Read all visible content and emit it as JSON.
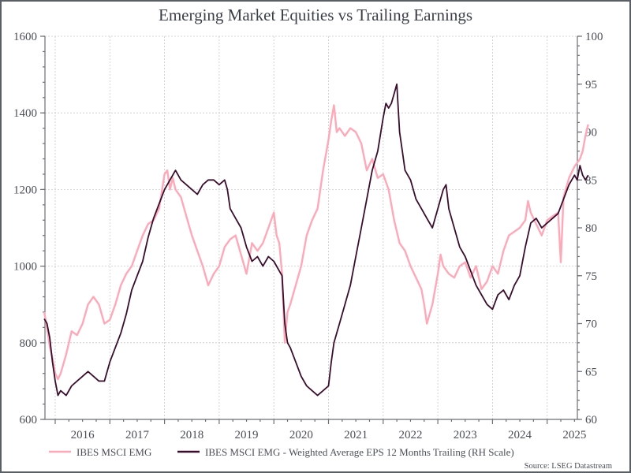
{
  "chart_data": {
    "type": "line",
    "title": "Emerging Market Equities vs Trailing Earnings",
    "xlabel": "",
    "ylabel_left": "",
    "ylabel_right": "",
    "x_tick_labels": [
      "2016",
      "2017",
      "2018",
      "2019",
      "2020",
      "2021",
      "2022",
      "2023",
      "2024",
      "2025"
    ],
    "xlim": [
      2015.8,
      2025.75
    ],
    "ylim_left": [
      600,
      1600
    ],
    "yticks_left": [
      600,
      800,
      1000,
      1200,
      1400,
      1600
    ],
    "ylim_right": [
      60,
      100
    ],
    "yticks_right": [
      60,
      65,
      70,
      75,
      80,
      85,
      90,
      95,
      100
    ],
    "grid": true,
    "legend_position": "bottom",
    "source": "Source: LSEG Datastream",
    "series": [
      {
        "name": "IBES MSCI EMG",
        "axis": "left",
        "color": "#ffa8b8",
        "x": [
          2015.8,
          2015.85,
          2015.9,
          2015.95,
          2016.0,
          2016.05,
          2016.1,
          2016.2,
          2016.3,
          2016.4,
          2016.5,
          2016.6,
          2016.7,
          2016.8,
          2016.9,
          2017.0,
          2017.1,
          2017.2,
          2017.3,
          2017.4,
          2017.5,
          2017.6,
          2017.7,
          2017.8,
          2017.9,
          2018.0,
          2018.05,
          2018.1,
          2018.15,
          2018.2,
          2018.3,
          2018.4,
          2018.5,
          2018.6,
          2018.7,
          2018.8,
          2018.9,
          2019.0,
          2019.1,
          2019.2,
          2019.3,
          2019.4,
          2019.5,
          2019.6,
          2019.7,
          2019.8,
          2019.9,
          2020.0,
          2020.05,
          2020.1,
          2020.15,
          2020.2,
          2020.25,
          2020.3,
          2020.4,
          2020.5,
          2020.6,
          2020.7,
          2020.8,
          2020.9,
          2021.0,
          2021.05,
          2021.1,
          2021.15,
          2021.2,
          2021.3,
          2021.4,
          2021.5,
          2021.6,
          2021.7,
          2021.8,
          2021.9,
          2022.0,
          2022.1,
          2022.15,
          2022.2,
          2022.3,
          2022.4,
          2022.5,
          2022.6,
          2022.7,
          2022.75,
          2022.8,
          2022.9,
          2023.0,
          2023.05,
          2023.1,
          2023.2,
          2023.3,
          2023.4,
          2023.5,
          2023.6,
          2023.7,
          2023.8,
          2023.9,
          2024.0,
          2024.1,
          2024.2,
          2024.3,
          2024.4,
          2024.5,
          2024.6,
          2024.65,
          2024.7,
          2024.8,
          2024.9,
          2025.0,
          2025.1,
          2025.2,
          2025.25,
          2025.3,
          2025.4,
          2025.5,
          2025.6,
          2025.65,
          2025.7,
          2025.75
        ],
        "values": [
          880,
          840,
          790,
          760,
          720,
          705,
          720,
          770,
          830,
          820,
          850,
          900,
          920,
          900,
          850,
          860,
          900,
          950,
          980,
          1000,
          1040,
          1080,
          1110,
          1120,
          1150,
          1240,
          1250,
          1200,
          1230,
          1200,
          1180,
          1130,
          1080,
          1040,
          1000,
          950,
          980,
          1000,
          1050,
          1070,
          1080,
          1030,
          980,
          1060,
          1040,
          1060,
          1100,
          1140,
          1080,
          1060,
          980,
          800,
          880,
          900,
          950,
          1000,
          1080,
          1120,
          1150,
          1250,
          1330,
          1380,
          1420,
          1350,
          1360,
          1340,
          1360,
          1350,
          1320,
          1250,
          1280,
          1230,
          1240,
          1200,
          1160,
          1120,
          1060,
          1040,
          1000,
          970,
          940,
          900,
          850,
          900,
          980,
          1030,
          1000,
          980,
          970,
          1000,
          1010,
          970,
          1000,
          940,
          960,
          1000,
          980,
          1040,
          1080,
          1090,
          1100,
          1120,
          1170,
          1140,
          1110,
          1080,
          1120,
          1130,
          1140,
          1010,
          1180,
          1230,
          1260,
          1280,
          1300,
          1340,
          1370
        ]
      },
      {
        "name": "IBES MSCI EMG - Weighted Average EPS 12 Months Trailing (RH Scale)",
        "axis": "right",
        "color": "#3a0d2c",
        "x": [
          2015.8,
          2015.85,
          2015.9,
          2015.95,
          2016.0,
          2016.05,
          2016.1,
          2016.2,
          2016.3,
          2016.4,
          2016.5,
          2016.6,
          2016.7,
          2016.8,
          2016.9,
          2017.0,
          2017.1,
          2017.2,
          2017.3,
          2017.4,
          2017.5,
          2017.6,
          2017.7,
          2017.8,
          2017.9,
          2018.0,
          2018.1,
          2018.15,
          2018.2,
          2018.3,
          2018.4,
          2018.5,
          2018.6,
          2018.7,
          2018.8,
          2018.9,
          2019.0,
          2019.1,
          2019.15,
          2019.2,
          2019.3,
          2019.4,
          2019.5,
          2019.6,
          2019.7,
          2019.8,
          2019.9,
          2020.0,
          2020.1,
          2020.15,
          2020.2,
          2020.25,
          2020.3,
          2020.4,
          2020.5,
          2020.6,
          2020.7,
          2020.8,
          2020.9,
          2021.0,
          2021.05,
          2021.1,
          2021.2,
          2021.3,
          2021.4,
          2021.5,
          2021.6,
          2021.7,
          2021.8,
          2021.9,
          2022.0,
          2022.05,
          2022.1,
          2022.15,
          2022.2,
          2022.25,
          2022.3,
          2022.35,
          2022.4,
          2022.5,
          2022.6,
          2022.7,
          2022.8,
          2022.9,
          2023.0,
          2023.1,
          2023.15,
          2023.2,
          2023.3,
          2023.4,
          2023.5,
          2023.6,
          2023.7,
          2023.8,
          2023.9,
          2024.0,
          2024.1,
          2024.2,
          2024.3,
          2024.4,
          2024.5,
          2024.6,
          2024.7,
          2024.8,
          2024.9,
          2025.0,
          2025.1,
          2025.2,
          2025.3,
          2025.4,
          2025.5,
          2025.55,
          2025.6,
          2025.65,
          2025.7,
          2025.75
        ],
        "values": [
          70.5,
          70,
          68.5,
          66,
          64,
          62.5,
          63,
          62.5,
          63.5,
          64,
          64.5,
          65,
          64.5,
          64,
          64,
          66,
          67.5,
          69,
          71,
          73.5,
          75,
          76.5,
          79,
          81,
          82.5,
          84,
          85,
          85.5,
          86,
          85,
          84.5,
          84,
          83.5,
          84.5,
          85,
          85,
          84.5,
          85,
          84,
          82,
          81,
          80,
          78,
          76.5,
          77,
          76,
          77,
          76.5,
          75.5,
          75,
          70,
          68,
          67.5,
          66,
          64.5,
          63.5,
          63,
          62.5,
          63,
          63.5,
          66,
          68,
          70,
          72,
          74,
          77,
          80,
          83,
          86,
          88,
          91.5,
          93,
          92.5,
          93,
          94,
          95,
          90,
          88,
          86,
          85,
          83,
          82,
          81,
          80,
          82,
          84,
          84.5,
          82,
          80,
          78,
          77,
          75.5,
          74,
          73,
          72,
          71.5,
          73,
          73.5,
          72.5,
          74,
          75,
          78,
          80.5,
          81,
          80,
          80.5,
          81,
          81.5,
          83,
          84.5,
          85.5,
          85,
          86.5,
          85.5,
          85,
          85.5
        ]
      }
    ]
  }
}
